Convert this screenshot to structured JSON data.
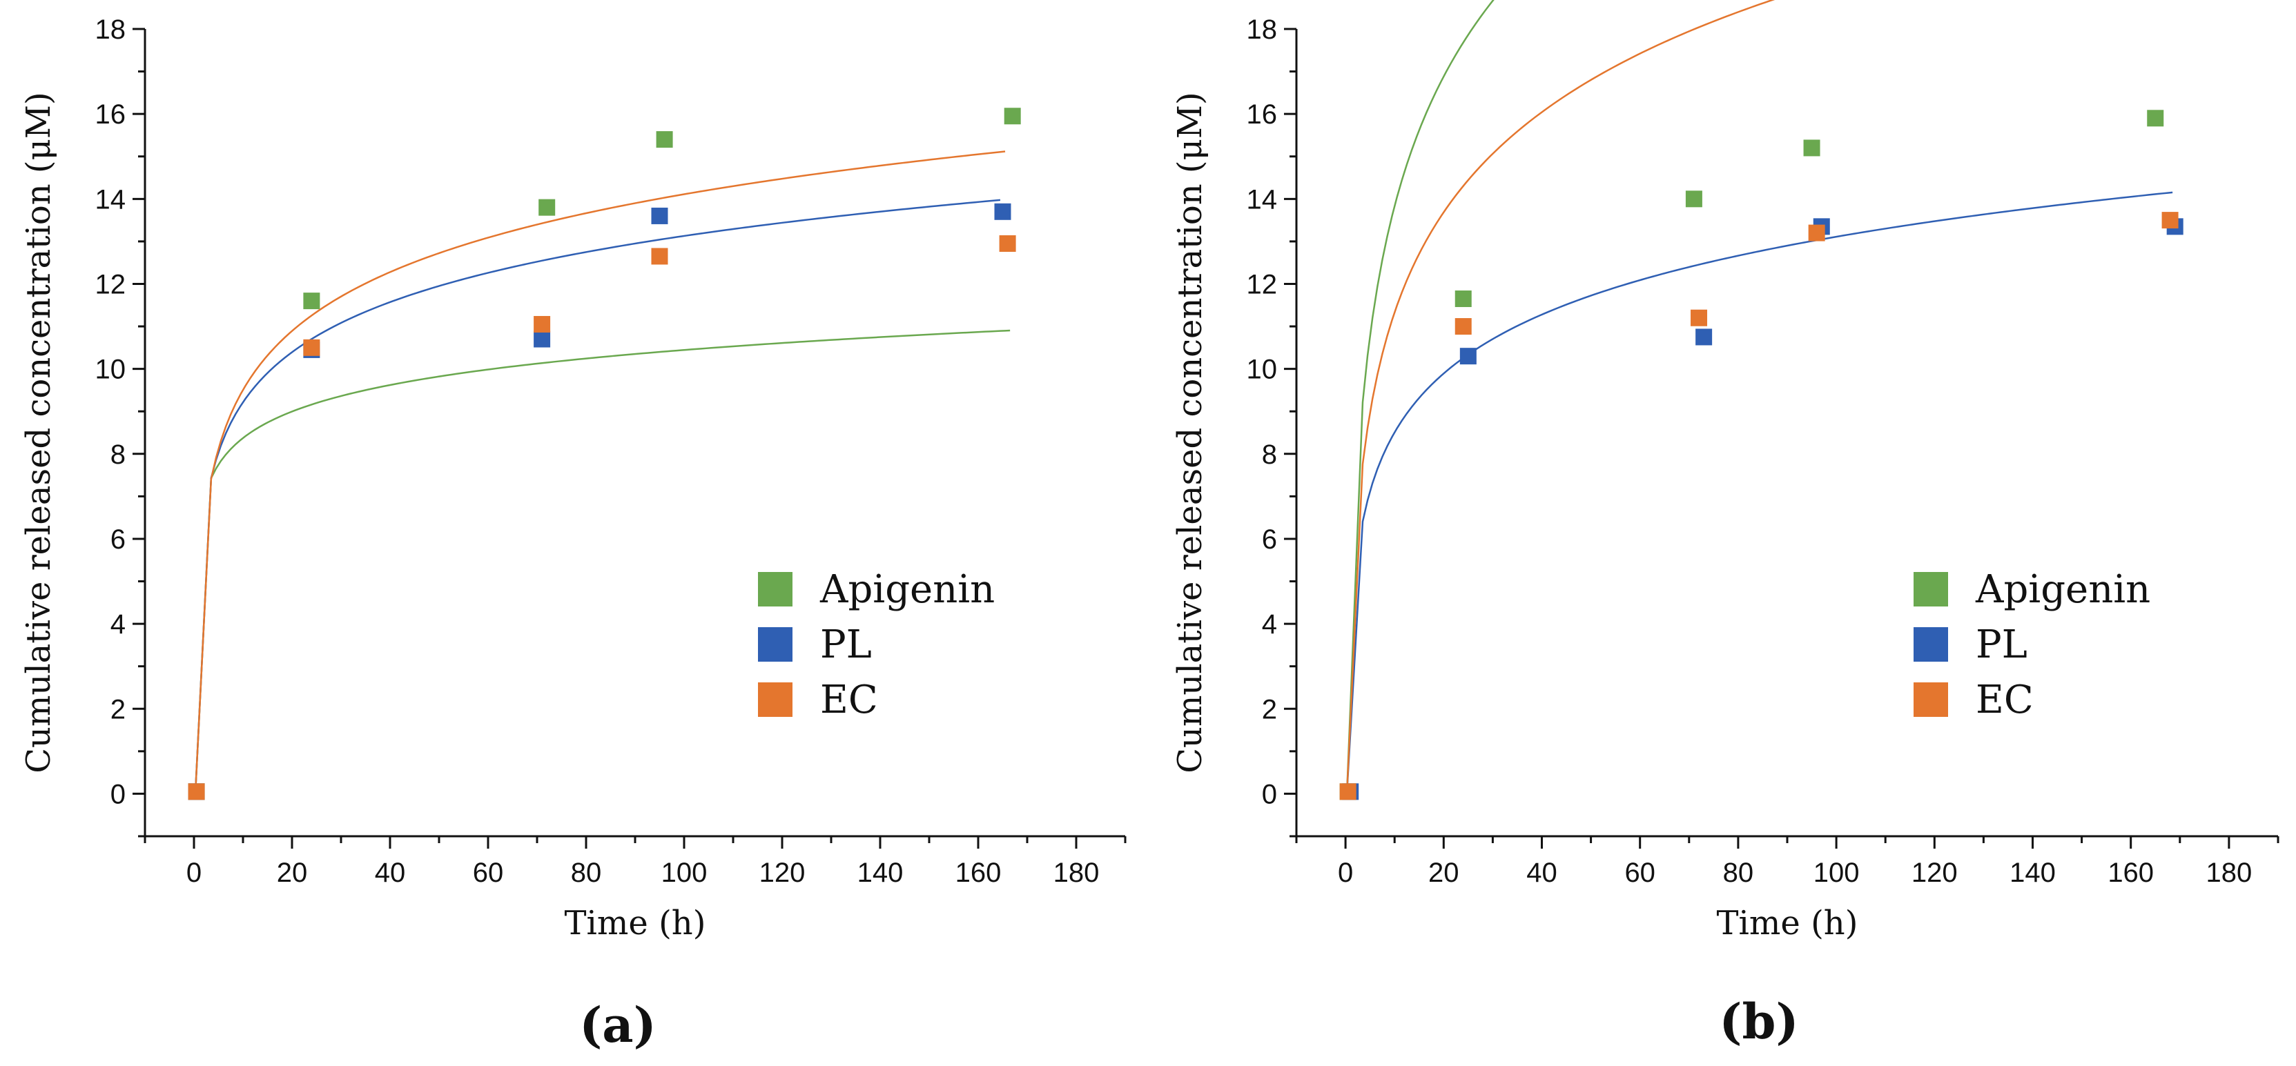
{
  "chart_data": [
    {
      "type": "scatter",
      "panel_label": "(a)",
      "xlabel": "Time (h)",
      "ylabel": "Cumulative released concentration (μM)",
      "xlim": [
        -10,
        190
      ],
      "ylim": [
        -1,
        18
      ],
      "xticks": [
        "0",
        "20",
        "40",
        "60",
        "80",
        "100",
        "120",
        "140",
        "160",
        "180"
      ],
      "yticks": [
        "0",
        "2",
        "4",
        "6",
        "8",
        "10",
        "12",
        "14",
        "16",
        "18"
      ],
      "legend_position": "bottom-right",
      "series": [
        {
          "name": "Apigenin",
          "color": "#6aa84f",
          "x": [
            0.5,
            24,
            72,
            96,
            167
          ],
          "y": [
            0.05,
            11.6,
            13.8,
            15.4,
            15.95
          ],
          "fit": {
            "a": 0.9,
            "b": 6.3,
            "x0": 0.3
          }
        },
        {
          "name": "PL",
          "color": "#2f5fb3",
          "x": [
            0.5,
            24,
            71,
            95,
            165
          ],
          "y": [
            0.05,
            10.45,
            10.7,
            13.6,
            13.7
          ],
          "fit": {
            "a": 1.7,
            "b": 5.3,
            "x0": 0.3
          }
        },
        {
          "name": "EC",
          "color": "#e4762e",
          "x": [
            0.5,
            24,
            71,
            95,
            166
          ],
          "y": [
            0.05,
            10.5,
            11.05,
            12.65,
            12.95
          ],
          "fit": {
            "a": 2.0,
            "b": 4.9,
            "x0": 0.3
          }
        }
      ]
    },
    {
      "type": "scatter",
      "panel_label": "(b)",
      "xlabel": "Time (h)",
      "ylabel": "Cumulative released concentration (μM)",
      "xlim": [
        -10,
        190
      ],
      "ylim": [
        -1,
        18
      ],
      "xticks": [
        "0",
        "20",
        "40",
        "60",
        "80",
        "100",
        "120",
        "140",
        "160",
        "180"
      ],
      "yticks": [
        "0",
        "2",
        "4",
        "6",
        "8",
        "10",
        "12",
        "14",
        "16",
        "18"
      ],
      "legend_position": "bottom-right",
      "series": [
        {
          "name": "Apigenin",
          "color": "#6aa84f",
          "x": [
            0.5,
            24,
            71,
            95,
            165
          ],
          "y": [
            0.05,
            11.65,
            14.0,
            15.2,
            15.9
          ],
          "fit": {
            "a": 4.4,
            "b": 3.7,
            "x0": 0.3
          }
        },
        {
          "name": "PL",
          "color": "#2f5fb3",
          "x": [
            1,
            25,
            73,
            97,
            169
          ],
          "y": [
            0.05,
            10.3,
            10.75,
            13.35,
            13.35
          ],
          "fit": {
            "a": 2.0,
            "b": 3.9,
            "x0": 0.3
          }
        },
        {
          "name": "EC",
          "color": "#e4762e",
          "x": [
            0.5,
            24,
            72,
            96,
            168
          ],
          "y": [
            0.05,
            11.0,
            11.2,
            13.2,
            13.5
          ],
          "fit": {
            "a": 3.4,
            "b": 3.5,
            "x0": 0.3
          }
        }
      ]
    }
  ]
}
